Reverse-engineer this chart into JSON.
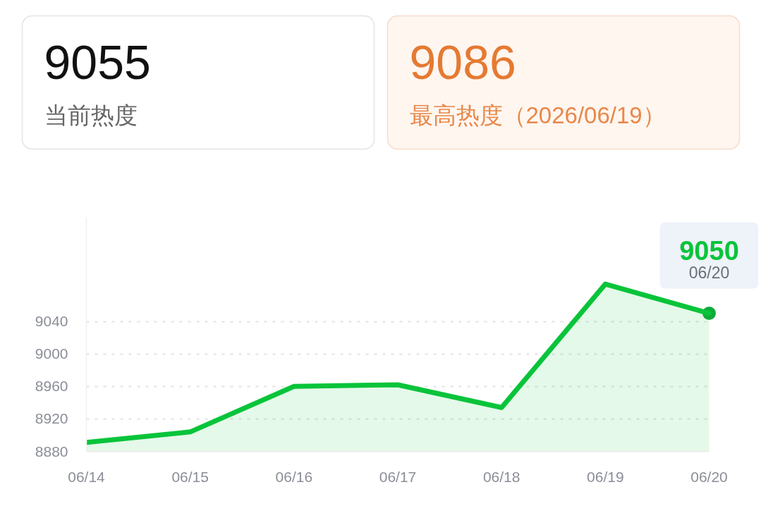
{
  "chart_data": [
    {
      "type": "other",
      "title": "9055",
      "subtitle": "当前热度"
    },
    {
      "type": "other",
      "title": "9086",
      "subtitle": "最高热度（2026/06/19）"
    },
    {
      "type": "area",
      "categories": [
        "06/14",
        "06/15",
        "06/16",
        "06/17",
        "06/18",
        "06/19",
        "06/20"
      ],
      "series": [
        {
          "type": "area",
          "color": "#08c43a",
          "values": [
            8891,
            8904,
            8960,
            8962,
            8934,
            9086,
            9050
          ]
        },
        {
          "type": "scatter",
          "color": "#10aa3a",
          "x": [
            "06/20"
          ],
          "values": [
            9050
          ]
        }
      ],
      "ylim": [
        8880,
        9168
      ],
      "yticks": [
        8880,
        8920,
        8960,
        9000,
        9040
      ],
      "grid": "y",
      "line_style": "solid",
      "annotations": [
        {
          "text": "9050",
          "x": "06/20",
          "y": 9050
        },
        {
          "text": "06/20",
          "x": "06/20",
          "y": 9050
        }
      ]
    }
  ]
}
